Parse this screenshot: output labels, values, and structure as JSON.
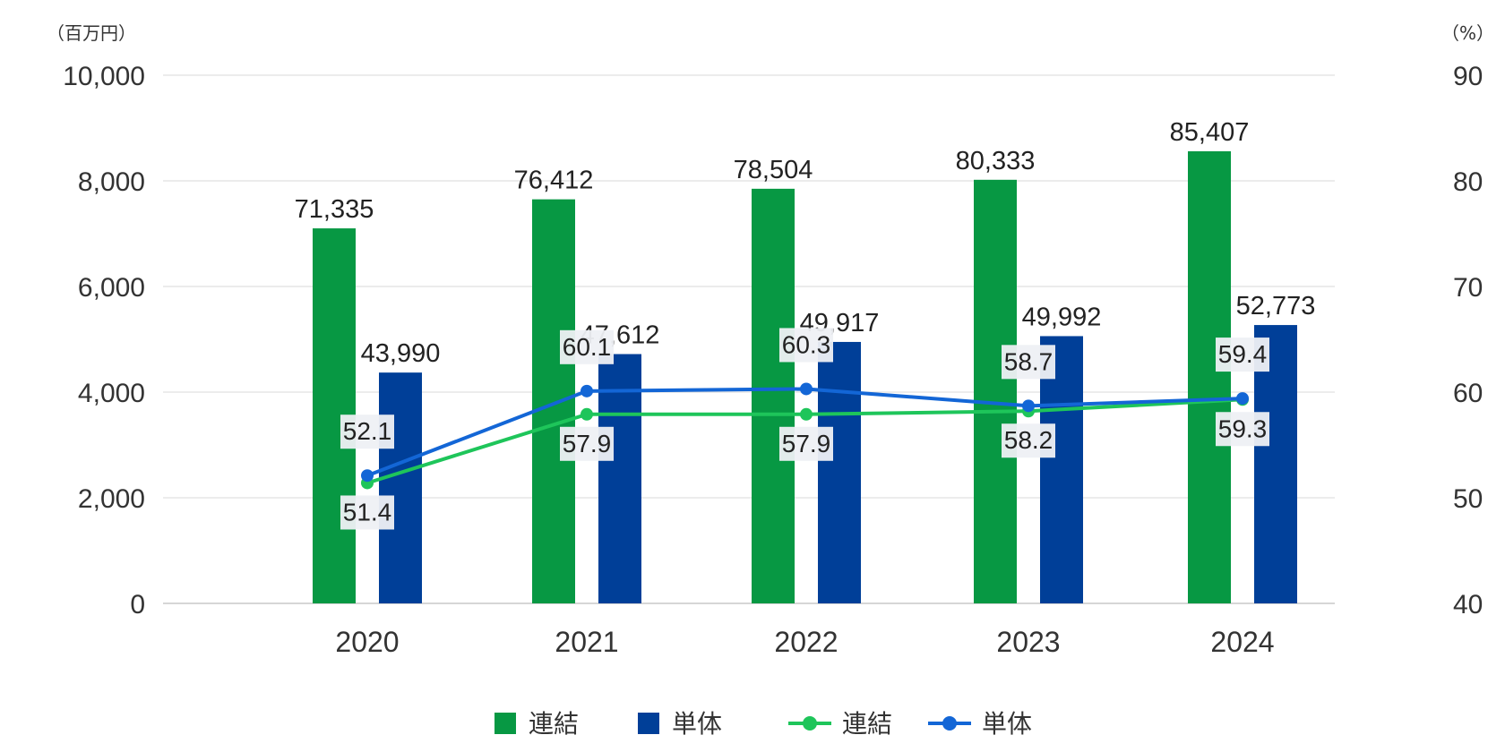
{
  "chart_data": {
    "type": "bar",
    "categories": [
      "2020",
      "2021",
      "2022",
      "2023",
      "2024"
    ],
    "y_left": {
      "unit_label": "（百万円）",
      "ylim": [
        0,
        10000
      ],
      "ticks": [
        "0",
        "2,000",
        "4,000",
        "6,000",
        "8,000",
        "10,000"
      ]
    },
    "y_right": {
      "unit_label": "（%）",
      "ylim": [
        40,
        90
      ],
      "ticks": [
        "40",
        "50",
        "60",
        "70",
        "80",
        "90"
      ]
    },
    "grid": true,
    "legend_position": "bottom-center",
    "bar_series": [
      {
        "name": "連結",
        "color": "#079843",
        "values": [
          7100,
          7650,
          7850,
          8020,
          8560
        ],
        "labels": [
          "71,335",
          "76,412",
          "78,504",
          "80,333",
          "85,407"
        ]
      },
      {
        "name": "単体",
        "color": "#003f98",
        "values": [
          4370,
          4720,
          4950,
          5060,
          5270
        ],
        "labels": [
          "43,990",
          "47,612",
          "49,917",
          "49,992",
          "52,773"
        ]
      }
    ],
    "line_series": [
      {
        "name": "連結",
        "color": "#1ec55a",
        "values": [
          51.4,
          57.9,
          57.9,
          58.2,
          59.3
        ],
        "labels": [
          "51.4",
          "57.9",
          "57.9",
          "58.2",
          "59.3"
        ],
        "label_side": "below"
      },
      {
        "name": "単体",
        "color": "#1366d6",
        "values": [
          52.1,
          60.1,
          60.3,
          58.7,
          59.4
        ],
        "labels": [
          "52.1",
          "60.1",
          "60.3",
          "58.7",
          "59.4"
        ],
        "label_side": "above"
      }
    ]
  }
}
